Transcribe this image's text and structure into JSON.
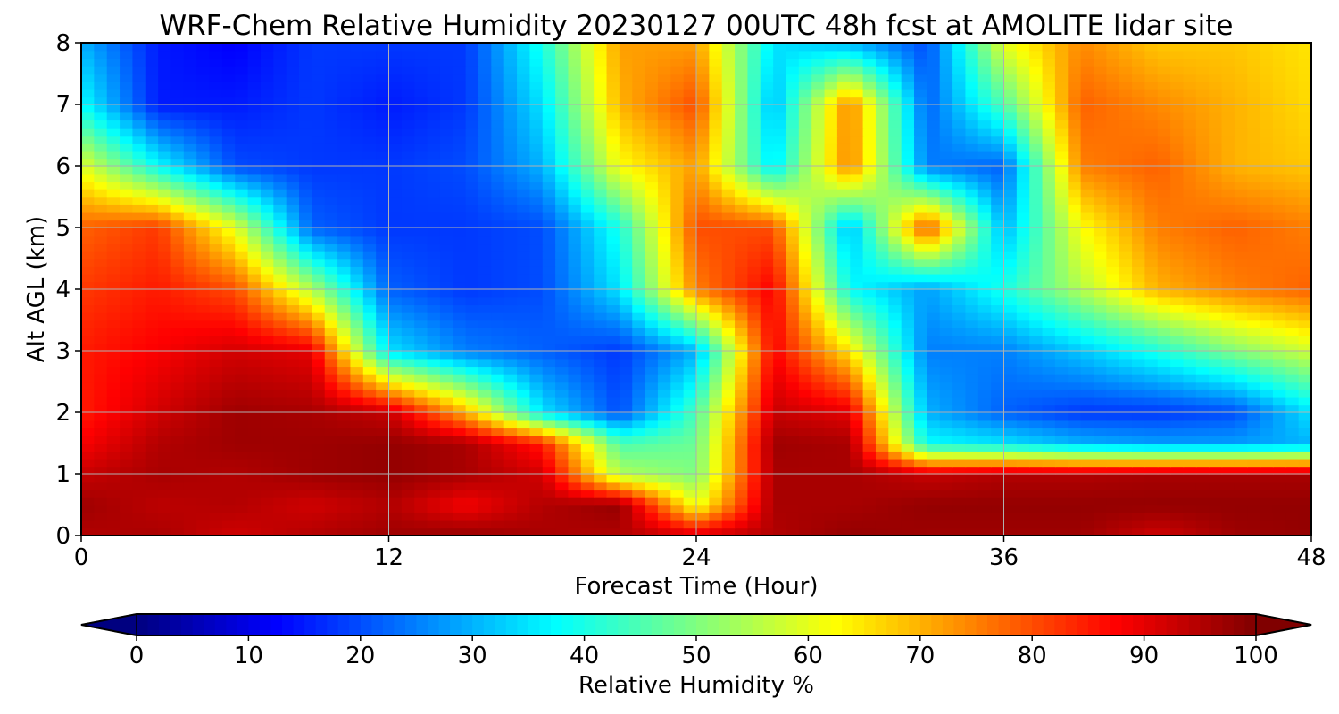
{
  "chart_data": {
    "type": "heatmap",
    "title": "WRF-Chem Relative Humidity 20230127 00UTC 48h fcst at AMOLITE lidar site",
    "xlabel": "Forecast Time (Hour)",
    "ylabel": "Alt AGL (km)",
    "xlim": [
      0,
      48
    ],
    "ylim": [
      0,
      8
    ],
    "xticks": [
      0,
      12,
      24,
      36,
      48
    ],
    "yticks": [
      0,
      1,
      2,
      3,
      4,
      5,
      6,
      7,
      8
    ],
    "grid": true,
    "colormap": "jet",
    "colorbar": {
      "label": "Relative Humidity %",
      "orientation": "horizontal",
      "placement": "bottom",
      "range": [
        0,
        100
      ],
      "ticks": [
        0,
        10,
        20,
        30,
        40,
        50,
        60,
        70,
        80,
        90,
        100
      ],
      "extend": "both"
    },
    "x": [
      0,
      3,
      6,
      9,
      12,
      15,
      18,
      21,
      24,
      27,
      30,
      33,
      36,
      39,
      42,
      45,
      48
    ],
    "y": [
      0,
      0.5,
      1,
      1.5,
      2,
      3,
      4,
      5,
      6,
      7,
      8
    ],
    "z": [
      [
        95,
        96,
        92,
        95,
        97,
        98,
        96,
        95,
        92,
        95,
        98,
        97,
        97,
        97,
        92,
        97,
        98
      ],
      [
        97,
        94,
        95,
        92,
        95,
        88,
        95,
        98,
        60,
        96,
        96,
        98,
        98,
        98,
        98,
        98,
        98
      ],
      [
        93,
        96,
        95,
        97,
        98,
        96,
        92,
        55,
        50,
        96,
        96,
        93,
        95,
        95,
        96,
        96,
        96
      ],
      [
        88,
        95,
        97,
        97,
        98,
        96,
        85,
        45,
        48,
        97,
        96,
        38,
        35,
        30,
        28,
        28,
        30
      ],
      [
        85,
        92,
        97,
        96,
        93,
        70,
        35,
        20,
        45,
        93,
        90,
        30,
        22,
        18,
        18,
        20,
        35
      ],
      [
        85,
        88,
        92,
        90,
        35,
        25,
        22,
        18,
        30,
        88,
        65,
        25,
        25,
        32,
        40,
        50,
        58
      ],
      [
        82,
        85,
        80,
        55,
        22,
        18,
        20,
        35,
        75,
        88,
        38,
        28,
        40,
        55,
        70,
        75,
        78
      ],
      [
        78,
        82,
        60,
        22,
        18,
        18,
        20,
        40,
        80,
        80,
        30,
        80,
        30,
        62,
        75,
        78,
        75
      ],
      [
        60,
        38,
        20,
        18,
        18,
        20,
        30,
        62,
        72,
        35,
        75,
        25,
        22,
        75,
        78,
        70,
        68
      ],
      [
        38,
        15,
        15,
        18,
        15,
        18,
        35,
        70,
        80,
        30,
        75,
        22,
        45,
        78,
        74,
        70,
        66
      ],
      [
        30,
        15,
        12,
        18,
        18,
        18,
        40,
        72,
        72,
        35,
        30,
        20,
        60,
        74,
        68,
        68,
        65
      ]
    ]
  }
}
